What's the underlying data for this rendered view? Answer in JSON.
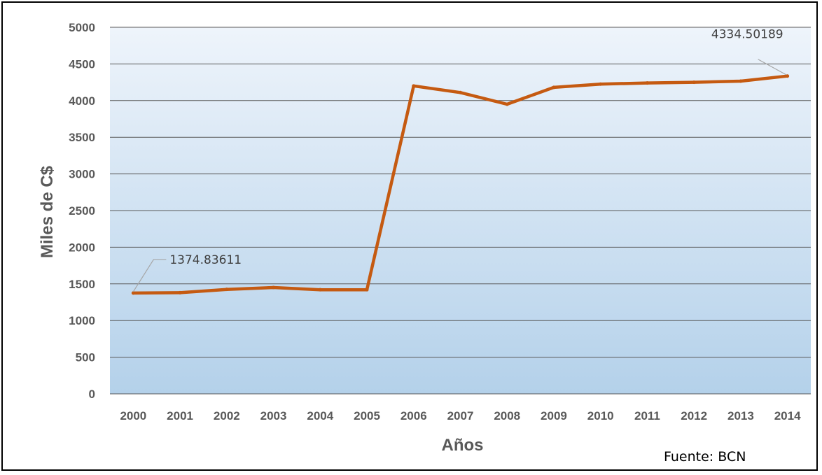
{
  "chart_data": {
    "type": "line",
    "title": "",
    "xlabel": "Años",
    "ylabel": "Miles de C$",
    "ylim": [
      0,
      5000
    ],
    "yticks": [
      0,
      500,
      1000,
      1500,
      2000,
      2500,
      3000,
      3500,
      4000,
      4500,
      5000
    ],
    "grid": true,
    "legend": "none",
    "categories": [
      "2000",
      "2001",
      "2002",
      "2003",
      "2004",
      "2005",
      "2006",
      "2007",
      "2008",
      "2009",
      "2010",
      "2011",
      "2012",
      "2013",
      "2014"
    ],
    "series": [
      {
        "values": [
          1374.83611,
          1380,
          1425,
          1450,
          1420,
          1420,
          4200,
          4110,
          3950,
          4180,
          4225,
          4240,
          4250,
          4265,
          4334.50189
        ],
        "color": "#C55A11"
      }
    ],
    "data_labels": [
      {
        "category": "2000",
        "text": "1374.83611"
      },
      {
        "category": "2014",
        "text": "4334.50189"
      }
    ],
    "source": "Fuente: BCN",
    "colors": {
      "plot_background_top": "#EEF4FB",
      "plot_background_bottom": "#B4D1EA",
      "gridline": "#595959",
      "tick_text": "#595959",
      "leader_line": "#A6A6A6"
    }
  }
}
